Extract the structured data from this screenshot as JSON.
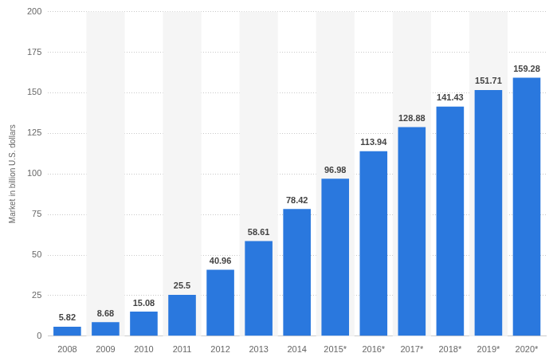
{
  "chart_data": {
    "type": "bar",
    "y_label": "Market in billion U.S. dollars",
    "categories": [
      "2008",
      "2009",
      "2010",
      "2011",
      "2012",
      "2013",
      "2014",
      "2015*",
      "2016*",
      "2017*",
      "2018*",
      "2019*",
      "2020*"
    ],
    "values": [
      5.82,
      8.68,
      15.08,
      25.5,
      40.96,
      58.61,
      78.42,
      96.98,
      113.94,
      128.88,
      141.43,
      151.71,
      159.28
    ],
    "color": "#2a78de",
    "ylim": [
      0,
      200
    ],
    "yticks": [
      0,
      25,
      50,
      75,
      100,
      125,
      150,
      175,
      200
    ],
    "grid": true,
    "data_labels": true
  }
}
